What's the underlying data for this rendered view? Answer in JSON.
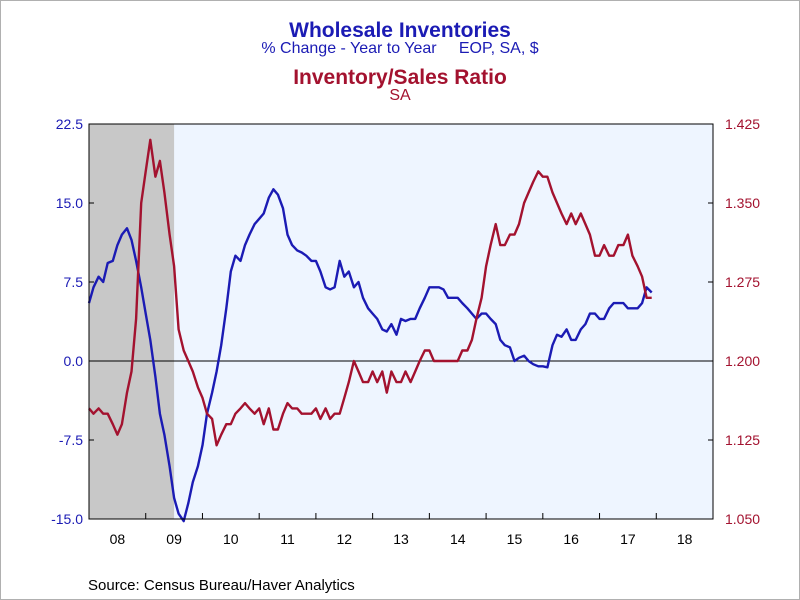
{
  "chart_data": {
    "type": "line",
    "title": "Wholesale Inventories",
    "subtitle": "% Change - Year to Year     EOP, SA, $",
    "title2": "Inventory/Sales Ratio",
    "subtitle2": "SA",
    "source": "Source:  Census Bureau/Haver Analytics",
    "x_tick_labels": [
      "08",
      "09",
      "10",
      "11",
      "12",
      "13",
      "14",
      "15",
      "16",
      "17",
      "18"
    ],
    "x_range": [
      2008.0,
      2019.0
    ],
    "left_axis": {
      "ylim": [
        -15.0,
        22.5
      ],
      "ticks": [
        22.5,
        15.0,
        7.5,
        0.0,
        -7.5,
        -15.0
      ],
      "tick_labels": [
        "22.5",
        "15.0",
        "7.5",
        "0.0",
        "-7.5",
        "-15.0"
      ]
    },
    "right_axis": {
      "ylim": [
        1.05,
        1.425
      ],
      "ticks": [
        1.425,
        1.35,
        1.275,
        1.2,
        1.125,
        1.05
      ],
      "tick_labels": [
        "1.425",
        "1.350",
        "1.275",
        "1.200",
        "1.125",
        "1.050"
      ]
    },
    "recession_shading": [
      2008.0,
      2009.5
    ],
    "zero_line": 0.0,
    "series": [
      {
        "axis": "left",
        "color": "#1b1bb4",
        "points": [
          [
            2008.0,
            5.5
          ],
          [
            2008.08,
            7.0
          ],
          [
            2008.17,
            8.0
          ],
          [
            2008.25,
            7.5
          ],
          [
            2008.33,
            9.3
          ],
          [
            2008.42,
            9.5
          ],
          [
            2008.5,
            11.0
          ],
          [
            2008.58,
            12.0
          ],
          [
            2008.67,
            12.6
          ],
          [
            2008.75,
            11.5
          ],
          [
            2008.83,
            9.5
          ],
          [
            2008.92,
            7.0
          ],
          [
            2009.0,
            4.5
          ],
          [
            2009.08,
            2.0
          ],
          [
            2009.17,
            -1.5
          ],
          [
            2009.25,
            -5.0
          ],
          [
            2009.33,
            -7.0
          ],
          [
            2009.42,
            -10.0
          ],
          [
            2009.5,
            -13.0
          ],
          [
            2009.58,
            -14.5
          ],
          [
            2009.67,
            -15.2
          ],
          [
            2009.75,
            -13.5
          ],
          [
            2009.83,
            -11.5
          ],
          [
            2009.92,
            -10.0
          ],
          [
            2010.0,
            -8.0
          ],
          [
            2010.08,
            -5.0
          ],
          [
            2010.17,
            -3.0
          ],
          [
            2010.25,
            -1.0
          ],
          [
            2010.33,
            1.5
          ],
          [
            2010.42,
            5.0
          ],
          [
            2010.5,
            8.5
          ],
          [
            2010.58,
            10.0
          ],
          [
            2010.67,
            9.5
          ],
          [
            2010.75,
            11.0
          ],
          [
            2010.83,
            12.0
          ],
          [
            2010.92,
            13.0
          ],
          [
            2011.0,
            13.5
          ],
          [
            2011.08,
            14.0
          ],
          [
            2011.17,
            15.5
          ],
          [
            2011.25,
            16.3
          ],
          [
            2011.33,
            15.8
          ],
          [
            2011.42,
            14.5
          ],
          [
            2011.5,
            12.0
          ],
          [
            2011.58,
            11.0
          ],
          [
            2011.67,
            10.5
          ],
          [
            2011.75,
            10.3
          ],
          [
            2011.83,
            10.0
          ],
          [
            2011.92,
            9.5
          ],
          [
            2012.0,
            9.5
          ],
          [
            2012.08,
            8.5
          ],
          [
            2012.17,
            7.0
          ],
          [
            2012.25,
            6.8
          ],
          [
            2012.33,
            7.0
          ],
          [
            2012.42,
            9.5
          ],
          [
            2012.5,
            8.0
          ],
          [
            2012.58,
            8.5
          ],
          [
            2012.67,
            7.0
          ],
          [
            2012.75,
            7.5
          ],
          [
            2012.83,
            6.0
          ],
          [
            2012.92,
            5.0
          ],
          [
            2013.0,
            4.5
          ],
          [
            2013.08,
            4.0
          ],
          [
            2013.17,
            3.0
          ],
          [
            2013.25,
            2.8
          ],
          [
            2013.33,
            3.5
          ],
          [
            2013.42,
            2.5
          ],
          [
            2013.5,
            4.0
          ],
          [
            2013.58,
            3.8
          ],
          [
            2013.67,
            4.0
          ],
          [
            2013.75,
            4.0
          ],
          [
            2013.83,
            5.0
          ],
          [
            2013.92,
            6.0
          ],
          [
            2014.0,
            7.0
          ],
          [
            2014.08,
            7.0
          ],
          [
            2014.17,
            7.0
          ],
          [
            2014.25,
            6.8
          ],
          [
            2014.33,
            6.0
          ],
          [
            2014.42,
            6.0
          ],
          [
            2014.5,
            6.0
          ],
          [
            2014.58,
            5.5
          ],
          [
            2014.67,
            5.0
          ],
          [
            2014.75,
            4.5
          ],
          [
            2014.83,
            4.0
          ],
          [
            2014.92,
            4.5
          ],
          [
            2015.0,
            4.5
          ],
          [
            2015.08,
            4.0
          ],
          [
            2015.17,
            3.5
          ],
          [
            2015.25,
            2.0
          ],
          [
            2015.33,
            1.5
          ],
          [
            2015.42,
            1.3
          ],
          [
            2015.5,
            0.0
          ],
          [
            2015.58,
            0.3
          ],
          [
            2015.67,
            0.5
          ],
          [
            2015.75,
            0.0
          ],
          [
            2015.83,
            -0.3
          ],
          [
            2015.92,
            -0.5
          ],
          [
            2016.0,
            -0.5
          ],
          [
            2016.08,
            -0.6
          ],
          [
            2016.17,
            1.5
          ],
          [
            2016.25,
            2.5
          ],
          [
            2016.33,
            2.3
          ],
          [
            2016.42,
            3.0
          ],
          [
            2016.5,
            2.0
          ],
          [
            2016.58,
            2.0
          ],
          [
            2016.67,
            3.0
          ],
          [
            2016.75,
            3.5
          ],
          [
            2016.83,
            4.5
          ],
          [
            2016.92,
            4.5
          ],
          [
            2017.0,
            4.0
          ],
          [
            2017.08,
            4.0
          ],
          [
            2017.17,
            5.0
          ],
          [
            2017.25,
            5.5
          ],
          [
            2017.33,
            5.5
          ],
          [
            2017.42,
            5.5
          ],
          [
            2017.5,
            5.0
          ],
          [
            2017.58,
            5.0
          ],
          [
            2017.67,
            5.0
          ],
          [
            2017.75,
            5.5
          ],
          [
            2017.83,
            7.0
          ],
          [
            2017.92,
            6.5
          ]
        ]
      },
      {
        "axis": "right",
        "color": "#a3122f",
        "points": [
          [
            2008.0,
            1.155
          ],
          [
            2008.08,
            1.15
          ],
          [
            2008.17,
            1.155
          ],
          [
            2008.25,
            1.15
          ],
          [
            2008.33,
            1.15
          ],
          [
            2008.42,
            1.14
          ],
          [
            2008.5,
            1.13
          ],
          [
            2008.58,
            1.14
          ],
          [
            2008.67,
            1.17
          ],
          [
            2008.75,
            1.19
          ],
          [
            2008.83,
            1.24
          ],
          [
            2008.92,
            1.35
          ],
          [
            2009.0,
            1.38
          ],
          [
            2009.08,
            1.41
          ],
          [
            2009.17,
            1.375
          ],
          [
            2009.25,
            1.39
          ],
          [
            2009.33,
            1.36
          ],
          [
            2009.42,
            1.32
          ],
          [
            2009.5,
            1.29
          ],
          [
            2009.58,
            1.23
          ],
          [
            2009.67,
            1.21
          ],
          [
            2009.75,
            1.2
          ],
          [
            2009.83,
            1.19
          ],
          [
            2009.92,
            1.175
          ],
          [
            2010.0,
            1.165
          ],
          [
            2010.08,
            1.15
          ],
          [
            2010.17,
            1.145
          ],
          [
            2010.25,
            1.12
          ],
          [
            2010.33,
            1.13
          ],
          [
            2010.42,
            1.14
          ],
          [
            2010.5,
            1.14
          ],
          [
            2010.58,
            1.15
          ],
          [
            2010.67,
            1.155
          ],
          [
            2010.75,
            1.16
          ],
          [
            2010.83,
            1.155
          ],
          [
            2010.92,
            1.15
          ],
          [
            2011.0,
            1.155
          ],
          [
            2011.08,
            1.14
          ],
          [
            2011.17,
            1.155
          ],
          [
            2011.25,
            1.135
          ],
          [
            2011.33,
            1.135
          ],
          [
            2011.42,
            1.15
          ],
          [
            2011.5,
            1.16
          ],
          [
            2011.58,
            1.155
          ],
          [
            2011.67,
            1.155
          ],
          [
            2011.75,
            1.15
          ],
          [
            2011.83,
            1.15
          ],
          [
            2011.92,
            1.15
          ],
          [
            2012.0,
            1.155
          ],
          [
            2012.08,
            1.145
          ],
          [
            2012.17,
            1.155
          ],
          [
            2012.25,
            1.145
          ],
          [
            2012.33,
            1.15
          ],
          [
            2012.42,
            1.15
          ],
          [
            2012.5,
            1.165
          ],
          [
            2012.58,
            1.18
          ],
          [
            2012.67,
            1.2
          ],
          [
            2012.75,
            1.19
          ],
          [
            2012.83,
            1.18
          ],
          [
            2012.92,
            1.18
          ],
          [
            2013.0,
            1.19
          ],
          [
            2013.08,
            1.18
          ],
          [
            2013.17,
            1.19
          ],
          [
            2013.25,
            1.17
          ],
          [
            2013.33,
            1.19
          ],
          [
            2013.42,
            1.18
          ],
          [
            2013.5,
            1.18
          ],
          [
            2013.58,
            1.19
          ],
          [
            2013.67,
            1.18
          ],
          [
            2013.75,
            1.19
          ],
          [
            2013.83,
            1.2
          ],
          [
            2013.92,
            1.21
          ],
          [
            2014.0,
            1.21
          ],
          [
            2014.08,
            1.2
          ],
          [
            2014.17,
            1.2
          ],
          [
            2014.25,
            1.2
          ],
          [
            2014.33,
            1.2
          ],
          [
            2014.42,
            1.2
          ],
          [
            2014.5,
            1.2
          ],
          [
            2014.58,
            1.21
          ],
          [
            2014.67,
            1.21
          ],
          [
            2014.75,
            1.22
          ],
          [
            2014.83,
            1.24
          ],
          [
            2014.92,
            1.26
          ],
          [
            2015.0,
            1.29
          ],
          [
            2015.08,
            1.31
          ],
          [
            2015.17,
            1.33
          ],
          [
            2015.25,
            1.31
          ],
          [
            2015.33,
            1.31
          ],
          [
            2015.42,
            1.32
          ],
          [
            2015.5,
            1.32
          ],
          [
            2015.58,
            1.33
          ],
          [
            2015.67,
            1.35
          ],
          [
            2015.75,
            1.36
          ],
          [
            2015.83,
            1.37
          ],
          [
            2015.92,
            1.38
          ],
          [
            2016.0,
            1.375
          ],
          [
            2016.08,
            1.375
          ],
          [
            2016.17,
            1.36
          ],
          [
            2016.25,
            1.35
          ],
          [
            2016.33,
            1.34
          ],
          [
            2016.42,
            1.33
          ],
          [
            2016.5,
            1.34
          ],
          [
            2016.58,
            1.33
          ],
          [
            2016.67,
            1.34
          ],
          [
            2016.75,
            1.33
          ],
          [
            2016.83,
            1.32
          ],
          [
            2016.92,
            1.3
          ],
          [
            2017.0,
            1.3
          ],
          [
            2017.08,
            1.31
          ],
          [
            2017.17,
            1.3
          ],
          [
            2017.25,
            1.3
          ],
          [
            2017.33,
            1.31
          ],
          [
            2017.42,
            1.31
          ],
          [
            2017.5,
            1.32
          ],
          [
            2017.58,
            1.3
          ],
          [
            2017.67,
            1.29
          ],
          [
            2017.75,
            1.28
          ],
          [
            2017.83,
            1.26
          ],
          [
            2017.92,
            1.26
          ]
        ]
      }
    ]
  }
}
